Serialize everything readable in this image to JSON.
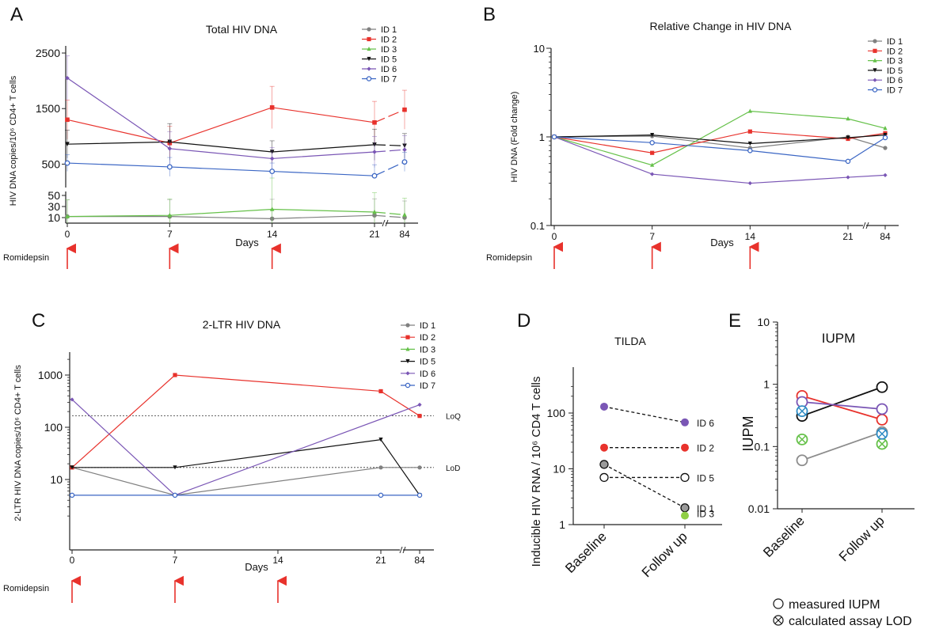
{
  "colors": {
    "ID 1": "#808080",
    "ID 2": "#e8322c",
    "ID 3": "#66c14a",
    "ID 5": "#111111",
    "ID 6": "#7a56b5",
    "ID 7": "#3b66c4",
    "arrow": "#e8322c"
  },
  "chart_data": [
    {
      "panel": "A",
      "type": "line",
      "title": "Total HIV DNA",
      "xlabel": "Days",
      "ylabel": "HIV DNA copies/10⁶ CD4+ T cells",
      "x": [
        0,
        7,
        14,
        21,
        84
      ],
      "x_tick_labels": [
        "0",
        "7",
        "14",
        "21",
        "84"
      ],
      "y_ticks": [
        10,
        30,
        50,
        500,
        1500,
        2500
      ],
      "y_tick_labels": [
        "10",
        "30",
        "50",
        "500",
        "1500",
        "2500"
      ],
      "axis_break_y": [
        60,
        250
      ],
      "axis_break_x": [
        21,
        84
      ],
      "series": [
        {
          "name": "ID 1",
          "values": [
            12,
            12,
            8,
            14,
            10
          ],
          "err": [
            30,
            30,
            35,
            30,
            30
          ]
        },
        {
          "name": "ID 2",
          "values": [
            1300,
            880,
            1520,
            1250,
            1480
          ],
          "err": [
            350,
            300,
            380,
            380,
            350
          ]
        },
        {
          "name": "ID 3",
          "values": [
            12,
            14,
            25,
            20,
            15
          ],
          "err": [
            30,
            30,
            40,
            35,
            30
          ]
        },
        {
          "name": "ID 5",
          "values": [
            860,
            900,
            720,
            850,
            830
          ],
          "err": [
            250,
            330,
            200,
            280,
            220
          ]
        },
        {
          "name": "ID 6",
          "values": [
            2050,
            780,
            600,
            720,
            760
          ],
          "err": [
            400,
            300,
            200,
            280,
            250
          ]
        },
        {
          "name": "ID 7",
          "values": [
            520,
            450,
            370,
            290,
            540
          ],
          "err": [
            150,
            170,
            150,
            200,
            170
          ]
        }
      ],
      "arrows_at": [
        0,
        7,
        14
      ],
      "arrows_label": "Romidepsin",
      "legend": "top-right"
    },
    {
      "panel": "B",
      "type": "line",
      "title": "Relative Change in HIV DNA",
      "xlabel": "Days",
      "ylabel": "HIV DNA (Fold change)",
      "x": [
        0,
        7,
        14,
        21,
        84
      ],
      "x_tick_labels": [
        "0",
        "7",
        "14",
        "21",
        "84"
      ],
      "y_scale": "log",
      "ylim": [
        0.1,
        10
      ],
      "y_tick_labels": [
        "0.1",
        "1",
        "10"
      ],
      "series": [
        {
          "name": "ID 1",
          "values": [
            1,
            1.02,
            0.75,
            1.0,
            0.75
          ]
        },
        {
          "name": "ID 2",
          "values": [
            1,
            0.66,
            1.15,
            0.95,
            1.1
          ]
        },
        {
          "name": "ID 3",
          "values": [
            1,
            0.48,
            1.95,
            1.6,
            1.25
          ]
        },
        {
          "name": "ID 5",
          "values": [
            1,
            1.05,
            0.84,
            0.98,
            1.05
          ]
        },
        {
          "name": "ID 6",
          "values": [
            1,
            0.38,
            0.3,
            0.35,
            0.37
          ]
        },
        {
          "name": "ID 7",
          "values": [
            1,
            0.86,
            0.7,
            0.53,
            0.98
          ]
        }
      ],
      "arrows_at": [
        0,
        7,
        14
      ],
      "arrows_label": "Romidepsin",
      "legend": "top-right"
    },
    {
      "panel": "C",
      "type": "line",
      "title": "2-LTR HIV DNA",
      "xlabel": "Days",
      "ylabel": "2-LTR HIV DNA copies/10⁶ CD4+ T cells",
      "x": [
        0,
        7,
        14,
        21,
        84
      ],
      "x_tick_labels": [
        "0",
        "7",
        "14",
        "21",
        "84"
      ],
      "y_scale": "log",
      "ylim": [
        1.5,
        3000
      ],
      "y_tick_labels": [
        "10",
        "100",
        "1000"
      ],
      "series": [
        {
          "name": "ID 1",
          "x": [
            0,
            7,
            21,
            84
          ],
          "values": [
            17,
            5,
            17,
            17
          ]
        },
        {
          "name": "ID 2",
          "x": [
            0,
            7,
            21,
            84
          ],
          "values": [
            17,
            1000,
            490,
            165
          ]
        },
        {
          "name": "ID 3",
          "x": [],
          "values": []
        },
        {
          "name": "ID 5",
          "x": [
            0,
            7,
            21,
            84
          ],
          "values": [
            17,
            17,
            58,
            5
          ]
        },
        {
          "name": "ID 6",
          "x": [
            0,
            7,
            84
          ],
          "values": [
            340,
            5,
            270
          ]
        },
        {
          "name": "ID 7",
          "x": [
            0,
            7,
            21,
            84
          ],
          "values": [
            5,
            5,
            5,
            5
          ]
        }
      ],
      "reference_lines": [
        {
          "label": "LoQ",
          "value": 165
        },
        {
          "label": "LoD",
          "value": 17
        }
      ],
      "arrows_at": [
        0,
        7,
        14
      ],
      "arrows_label": "Romidepsin",
      "legend": "top-right"
    },
    {
      "panel": "D",
      "type": "scatter",
      "title": "TILDA",
      "ylabel": "Inducible HIV RNA / 10⁶ CD4 T cells",
      "categories": [
        "Baseline",
        "Follow up"
      ],
      "y_scale": "log",
      "ylim": [
        1,
        300
      ],
      "y_tick_labels": [
        "1",
        "10",
        "100"
      ],
      "series": [
        {
          "name": "ID 6",
          "values": [
            130,
            68
          ],
          "dashed": true
        },
        {
          "name": "ID 2",
          "values": [
            24,
            24
          ],
          "dashed": true
        },
        {
          "name": "ID 5",
          "values": [
            7,
            7
          ],
          "dashed": true,
          "open": true
        },
        {
          "name": "ID 1",
          "values": [
            12,
            2
          ],
          "dashed": true
        },
        {
          "name": "ID 3",
          "values": [
            null,
            1.45
          ]
        }
      ]
    },
    {
      "panel": "E",
      "type": "scatter",
      "title": "IUPM",
      "ylabel": "IUPM",
      "categories": [
        "Baseline",
        "Follow up"
      ],
      "y_scale": "log",
      "ylim": [
        0.01,
        10
      ],
      "y_tick_labels": [
        "0.01",
        "0.1",
        "1",
        "10"
      ],
      "series": [
        {
          "name": "ID 1",
          "values": [
            0.06,
            0.17
          ],
          "markers": [
            "open",
            "open"
          ]
        },
        {
          "name": "ID 2",
          "values": [
            0.65,
            0.27
          ],
          "markers": [
            "open",
            "open"
          ]
        },
        {
          "name": "ID 3",
          "values": [
            0.13,
            0.11
          ],
          "markers": [
            "lod",
            "lod"
          ]
        },
        {
          "name": "ID 5",
          "values": [
            0.31,
            0.9
          ],
          "markers": [
            "open",
            "open"
          ]
        },
        {
          "name": "ID 6",
          "values": [
            0.52,
            0.4
          ],
          "markers": [
            "open",
            "open"
          ]
        },
        {
          "name": "ID 7",
          "values": [
            0.37,
            0.16
          ],
          "markers": [
            "lod",
            "lod"
          ]
        }
      ],
      "legend_items": [
        "measured IUPM",
        "calculated assay LOD"
      ]
    }
  ]
}
